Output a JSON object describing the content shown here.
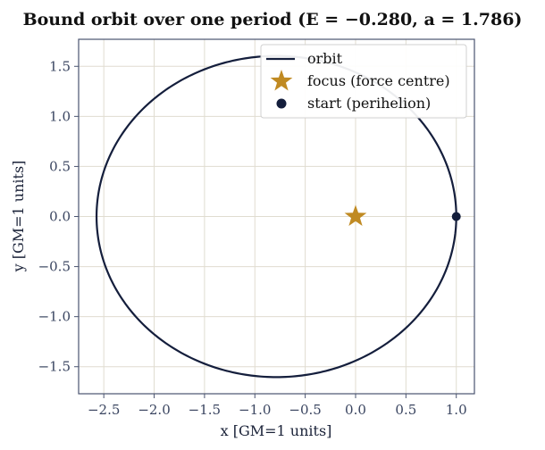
{
  "chart_data": {
    "type": "line",
    "title": "Bound orbit over one period  (E = −0.280, a = 1.786)",
    "xlabel": "x  [GM=1 units]",
    "ylabel": "y  [GM=1 units]",
    "xlim": [
      -2.75,
      1.18
    ],
    "ylim": [
      -1.77,
      1.77
    ],
    "xticks": [
      -2.5,
      -2.0,
      -1.5,
      -1.0,
      -0.5,
      0.0,
      0.5,
      1.0
    ],
    "xtick_labels": [
      "−2.5",
      "−2.0",
      "−1.5",
      "−1.0",
      "−0.5",
      "0.0",
      "0.5",
      "1.0"
    ],
    "yticks": [
      -1.5,
      -1.0,
      -0.5,
      0.0,
      0.5,
      1.0,
      1.5
    ],
    "ytick_labels": [
      "−1.5",
      "−1.0",
      "−0.5",
      "0.0",
      "0.5",
      "1.0",
      "1.5"
    ],
    "grid": true,
    "legend_position": "top-right",
    "orbit": {
      "name": "orbit",
      "color": "#141e3c",
      "semi_major_axis": 1.786,
      "eccentricity": 0.44,
      "center": [
        -0.786,
        0.0
      ]
    },
    "focus": {
      "name": "focus (force centre)",
      "x": 0.0,
      "y": 0.0,
      "color": "#c08a22"
    },
    "start": {
      "name": "start (perihelion)",
      "x": 1.0,
      "y": 0.0,
      "color": "#141e3c"
    }
  }
}
